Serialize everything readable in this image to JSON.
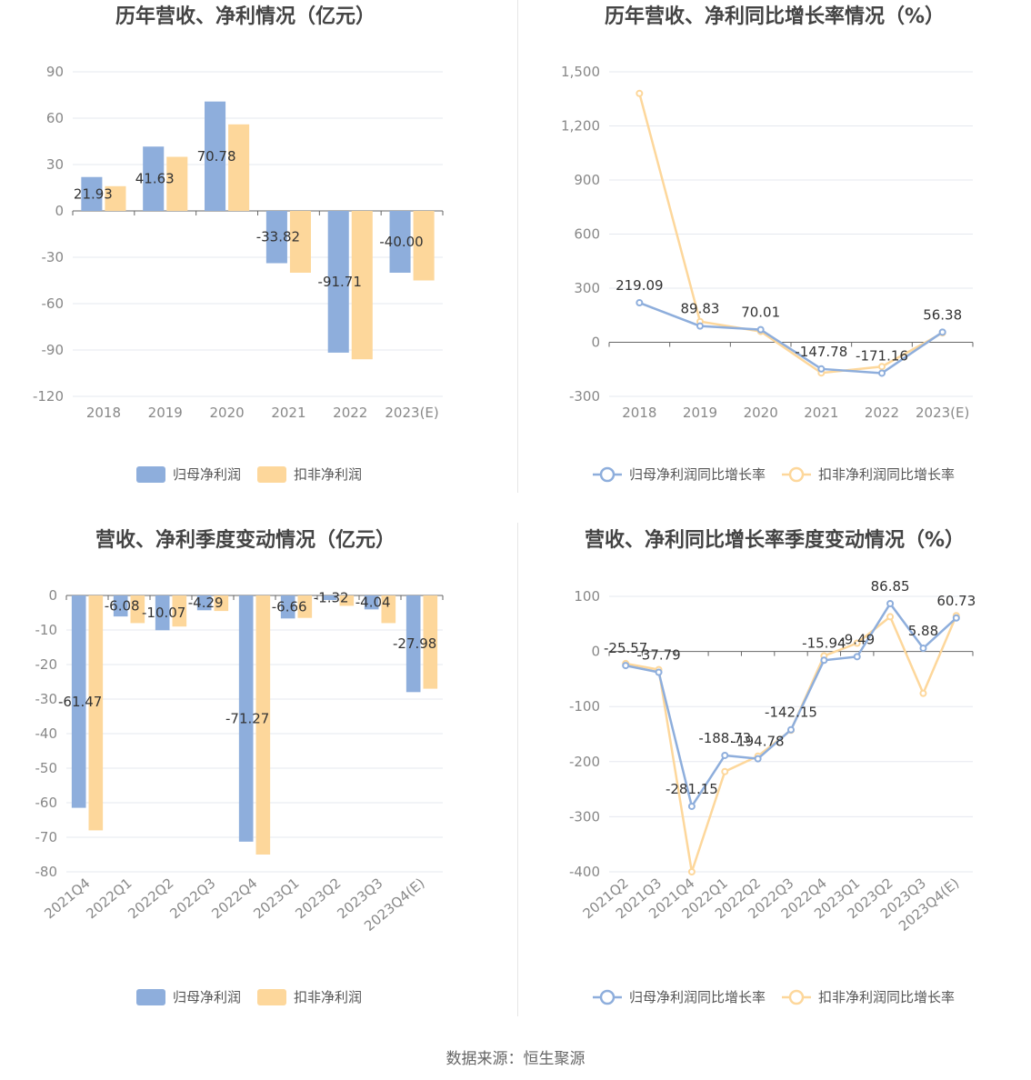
{
  "colors": {
    "blue": "#8eaedc",
    "orange": "#fdd79b",
    "grid": "#e5e8ef",
    "axis": "#666666"
  },
  "footer": {
    "source_text": "数据来源：恒生聚源"
  },
  "chart_data": [
    {
      "type": "bar",
      "title": "历年营收、净利情况（亿元）",
      "categories": [
        "2018",
        "2019",
        "2020",
        "2021",
        "2022",
        "2023(E)"
      ],
      "ylim": [
        -120,
        90
      ],
      "yticks": [
        90,
        60,
        30,
        0,
        -30,
        -60,
        -90,
        -120
      ],
      "ytick_labels": [
        "90",
        "60",
        "30",
        "0",
        "-30",
        "-60",
        "-90",
        "-120"
      ],
      "series": [
        {
          "name": "归母净利润",
          "color": "#8eaedc",
          "values": [
            21.93,
            41.63,
            70.78,
            -33.82,
            -91.71,
            -40.0
          ],
          "labels": [
            "21.93",
            "41.63",
            "70.78",
            "-33.82",
            "-91.71",
            "-40.00"
          ]
        },
        {
          "name": "扣非净利润",
          "color": "#fdd79b",
          "values": [
            16,
            35,
            56,
            -40,
            -96,
            -45
          ]
        }
      ],
      "legend": "bottom"
    },
    {
      "type": "line",
      "title": "历年营收、净利同比增长率情况（%）",
      "categories": [
        "2018",
        "2019",
        "2020",
        "2021",
        "2022",
        "2023(E)"
      ],
      "ylim": [
        -300,
        1500
      ],
      "yticks": [
        1500,
        1200,
        900,
        600,
        300,
        0,
        -300
      ],
      "ytick_labels": [
        "1,500",
        "1,200",
        "900",
        "600",
        "300",
        "0",
        "-300"
      ],
      "series": [
        {
          "name": "归母净利润同比增长率",
          "color": "#8eaedc",
          "values": [
            219.09,
            89.83,
            70.01,
            -147.78,
            -171.16,
            56.38
          ],
          "labels": [
            "219.09",
            "89.83",
            "70.01",
            "-147.78",
            "-171.16",
            "56.38"
          ]
        },
        {
          "name": "扣非净利润同比增长率",
          "color": "#fdd79b",
          "values": [
            1380,
            115,
            60,
            -170,
            -135,
            52
          ]
        }
      ],
      "legend": "bottom"
    },
    {
      "type": "bar",
      "title": "营收、净利季度变动情况（亿元）",
      "categories": [
        "2021Q4",
        "2022Q1",
        "2022Q2",
        "2022Q3",
        "2022Q4",
        "2023Q1",
        "2023Q2",
        "2023Q3",
        "2023Q4(E)"
      ],
      "ylim": [
        -80,
        0
      ],
      "yticks": [
        0,
        -10,
        -20,
        -30,
        -40,
        -50,
        -60,
        -70,
        -80
      ],
      "ytick_labels": [
        "0",
        "-10",
        "-20",
        "-30",
        "-40",
        "-50",
        "-60",
        "-70",
        "-80"
      ],
      "series": [
        {
          "name": "归母净利润",
          "color": "#8eaedc",
          "values": [
            -61.47,
            -6.08,
            -10.07,
            -4.29,
            -71.27,
            -6.66,
            -1.32,
            -4.04,
            -27.98
          ],
          "labels": [
            "-61.47",
            "-6.08",
            "-10.07",
            "-4.29",
            "-71.27",
            "-6.66",
            "-1.32",
            "-4.04",
            "-27.98"
          ]
        },
        {
          "name": "扣非净利润",
          "color": "#fdd79b",
          "values": [
            -68,
            -8,
            -9,
            -4.5,
            -75,
            -6.5,
            -3,
            -8,
            -27
          ]
        }
      ],
      "legend": "bottom"
    },
    {
      "type": "line",
      "title": "营收、净利同比增长率季度变动情况（%）",
      "categories": [
        "2021Q2",
        "2021Q3",
        "2021Q4",
        "2022Q1",
        "2022Q2",
        "2022Q3",
        "2022Q4",
        "2023Q1",
        "2023Q2",
        "2023Q3",
        "2023Q4(E)"
      ],
      "ylim": [
        -400,
        100
      ],
      "yticks": [
        100,
        0,
        -100,
        -200,
        -300,
        -400
      ],
      "ytick_labels": [
        "100",
        "0",
        "-100",
        "-200",
        "-300",
        "-400"
      ],
      "series": [
        {
          "name": "归母净利润同比增长率",
          "color": "#8eaedc",
          "values": [
            -25.57,
            -37.79,
            -281.15,
            -188.73,
            -194.78,
            -142.15,
            -15.94,
            -9.49,
            86.85,
            5.88,
            60.73
          ],
          "labels": [
            "-25.57",
            "-37.79",
            "-281.15",
            "-188.73",
            "-194.78",
            "-142.15",
            "-15.94",
            "-9.49",
            "86.85",
            "5.88",
            "60.73"
          ]
        },
        {
          "name": "扣非净利润同比增长率",
          "color": "#fdd79b",
          "values": [
            -22,
            -33,
            -400,
            -218,
            -190,
            -143,
            -8,
            15,
            63,
            -76,
            65
          ]
        }
      ],
      "legend": "bottom"
    }
  ]
}
